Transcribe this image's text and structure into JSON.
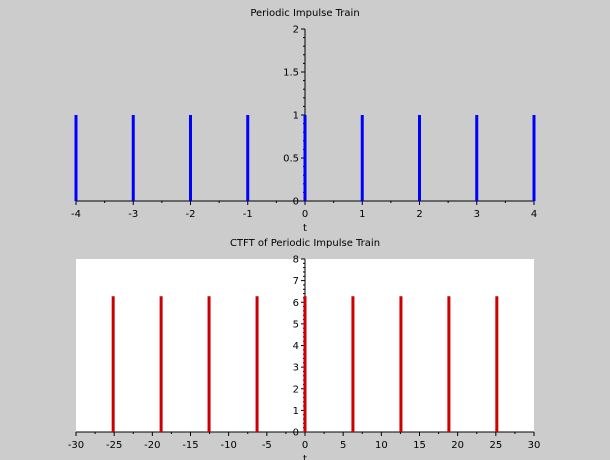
{
  "chart_data": [
    {
      "type": "stem",
      "title": "Periodic Impulse Train",
      "xlabel": "t",
      "ylabel": "",
      "xlim": [
        -4,
        4
      ],
      "ylim": [
        0,
        2
      ],
      "xticks": [
        -4,
        -3,
        -2,
        -1,
        0,
        1,
        2,
        3,
        4
      ],
      "xtick_labels": [
        "-4",
        "-3",
        "-2",
        "-1",
        "0",
        "1",
        "2",
        "3",
        "4"
      ],
      "yticks": [
        0,
        0.5,
        1,
        1.5,
        2
      ],
      "ytick_labels": [
        "0",
        "0.5",
        "1",
        "1.5",
        "2"
      ],
      "series": [
        {
          "x": [
            -4,
            -3,
            -2,
            -1,
            0,
            1,
            2,
            3,
            4
          ],
          "y": [
            1,
            1,
            1,
            1,
            1,
            1,
            1,
            1,
            1
          ],
          "color": "#0000ff"
        }
      ],
      "plot_background": "#cccccc",
      "grid": false
    },
    {
      "type": "stem",
      "title": "CTFT of Periodic Impulse Train",
      "xlabel": "t",
      "ylabel": "",
      "xlim": [
        -30,
        30
      ],
      "ylim": [
        0,
        8
      ],
      "xticks": [
        -30,
        -25,
        -20,
        -15,
        -10,
        -5,
        0,
        5,
        10,
        15,
        20,
        25,
        30
      ],
      "xtick_labels": [
        "-30",
        "-25",
        "-20",
        "-15",
        "-10",
        "-5",
        "0",
        "5",
        "10",
        "15",
        "20",
        "25",
        "30"
      ],
      "yticks": [
        0,
        1,
        2,
        3,
        4,
        5,
        6,
        7,
        8
      ],
      "ytick_labels": [
        "0",
        "1",
        "2",
        "3",
        "4",
        "5",
        "6",
        "7",
        "8"
      ],
      "series": [
        {
          "x": [
            -25.13,
            -18.85,
            -12.57,
            -6.28,
            0,
            6.28,
            12.57,
            18.85,
            25.13
          ],
          "y": [
            6.28,
            6.28,
            6.28,
            6.28,
            6.28,
            6.28,
            6.28,
            6.28,
            6.28
          ],
          "color": "#cc0000"
        }
      ],
      "plot_background": "#ffffff",
      "grid": false
    }
  ]
}
